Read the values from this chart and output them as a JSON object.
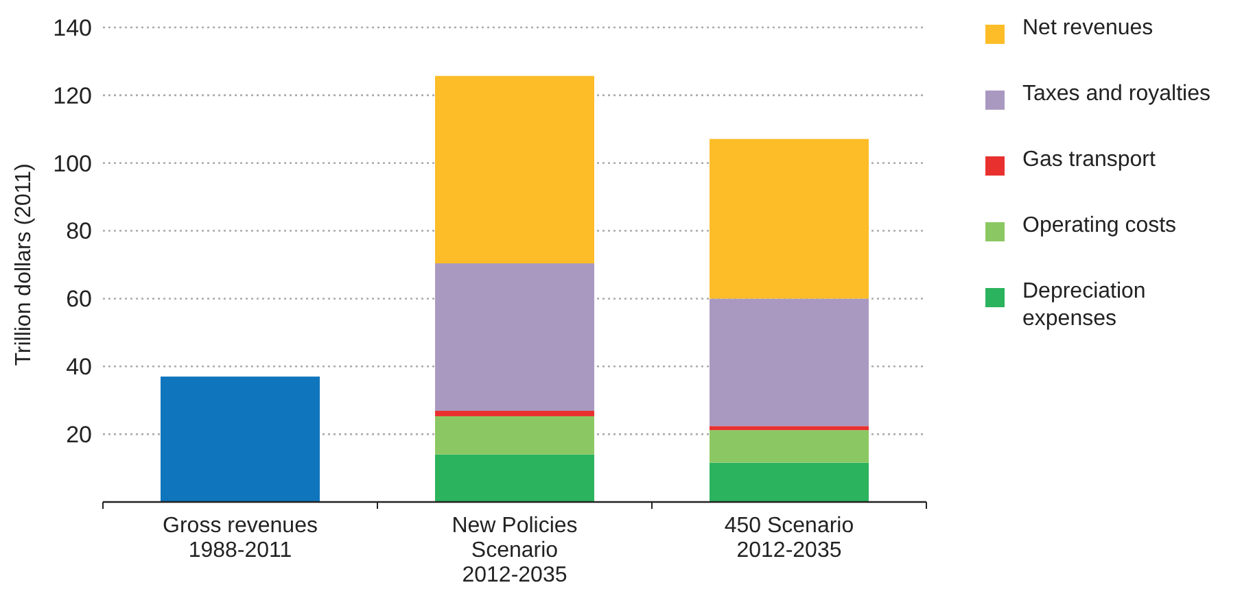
{
  "chart_data": {
    "type": "bar",
    "stacked": true,
    "ylabel": "Trillion dollars (2011)",
    "categories": [
      "Gross revenues\n1988-2011",
      "New Policies\nScenario\n2012-2035",
      "450 Scenario\n2012-2035"
    ],
    "ylim": [
      0,
      140
    ],
    "yticks": [
      20,
      40,
      60,
      80,
      100,
      120,
      140
    ],
    "grid": "y",
    "legend": "right",
    "series": [
      {
        "color": "#0f75bc",
        "values": [
          37,
          null,
          null
        ]
      },
      {
        "name": "Depreciation\nexpenses",
        "color": "#2bb35e",
        "values": [
          null,
          14,
          11.6
        ]
      },
      {
        "name": "Operating costs",
        "color": "#8bc863",
        "values": [
          null,
          11.3,
          9.6
        ]
      },
      {
        "name": "Gas transport",
        "color": "#e8312f",
        "values": [
          null,
          1.6,
          1.2
        ]
      },
      {
        "name": "Taxes and royalties",
        "color": "#a999c0",
        "values": [
          null,
          43.5,
          37.6
        ]
      },
      {
        "name": "Net revenues",
        "color": "#fcbd28",
        "values": [
          null,
          55.3,
          47.1
        ]
      }
    ]
  }
}
